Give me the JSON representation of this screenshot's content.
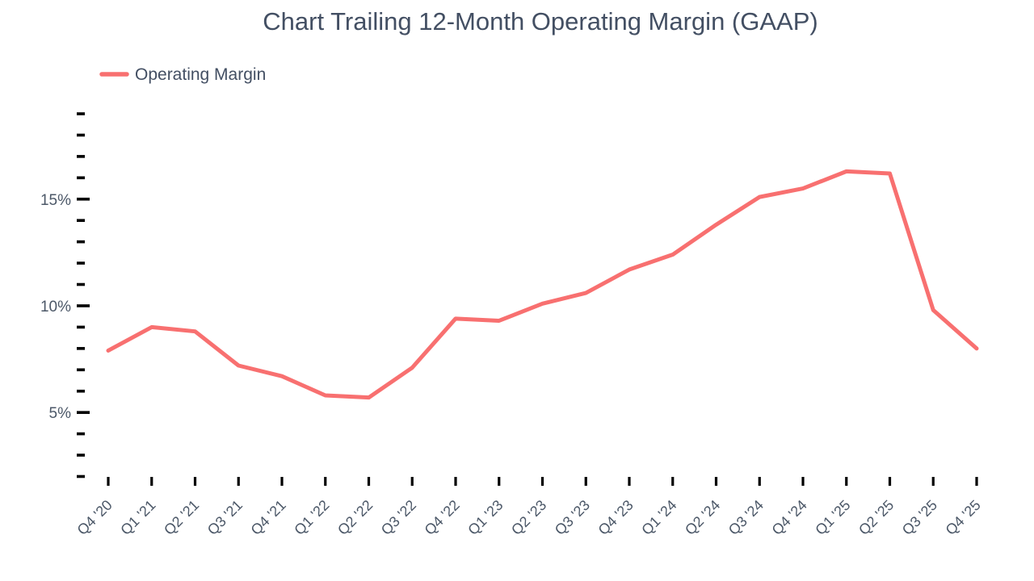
{
  "header": {
    "title": "Chart Trailing 12-Month Operating Margin (GAAP)"
  },
  "legend": {
    "label": "Operating Margin",
    "position": "top-left"
  },
  "colors": {
    "line": "#f87070",
    "title_text": "#434f63",
    "axis_label_text": "#4c5868",
    "tick": "#000000",
    "background": "#ffffff"
  },
  "chart_data": {
    "type": "line",
    "title": "Chart Trailing 12-Month Operating Margin (GAAP)",
    "xlabel": "",
    "ylabel": "",
    "categories": [
      "Q4 '20",
      "Q1 '21",
      "Q2 '21",
      "Q3 '21",
      "Q4 '21",
      "Q1 '22",
      "Q2 '22",
      "Q3 '22",
      "Q4 '22",
      "Q1 '23",
      "Q2 '23",
      "Q3 '23",
      "Q4 '23",
      "Q1 '24",
      "Q2 '24",
      "Q3 '24",
      "Q4 '24",
      "Q1 '25",
      "Q2 '25",
      "Q3 '25",
      "Q4 '25"
    ],
    "series": [
      {
        "name": "Operating Margin",
        "color": "#f87070",
        "unit": "%",
        "values": [
          7.9,
          9.0,
          8.8,
          7.2,
          6.7,
          5.8,
          5.7,
          7.1,
          9.4,
          9.3,
          10.1,
          10.6,
          11.7,
          12.4,
          13.8,
          15.1,
          15.5,
          16.3,
          16.2,
          9.8,
          8.0
        ]
      }
    ],
    "y_axis": {
      "min": 2,
      "max": 19,
      "minor_step": 1,
      "labeled_ticks": [
        5,
        10,
        15
      ],
      "tick_label_format": "percent"
    },
    "ylim": [
      2,
      19
    ],
    "grid": false,
    "legend_position": "top-left"
  }
}
